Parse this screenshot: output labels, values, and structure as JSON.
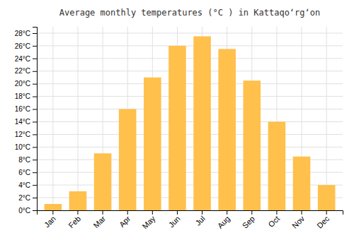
{
  "chart_data": {
    "type": "bar",
    "title": "Average monthly temperatures (°C ) in Kattaqoʻrgʻon",
    "categories": [
      "Jan",
      "Feb",
      "Mar",
      "Apr",
      "May",
      "Jun",
      "Jul",
      "Aug",
      "Sep",
      "Oct",
      "Nov",
      "Dec"
    ],
    "values": [
      1,
      3,
      9,
      16,
      21,
      26,
      27.5,
      25.5,
      20.5,
      14,
      8.5,
      4
    ],
    "color": "#FFC04C",
    "ylim": [
      0,
      29
    ],
    "yticks": [
      {
        "value": 0,
        "label": "0°C"
      },
      {
        "value": 2,
        "label": "2°C"
      },
      {
        "value": 4,
        "label": "4°C"
      },
      {
        "value": 6,
        "label": "6°C"
      },
      {
        "value": 8,
        "label": "8°C"
      },
      {
        "value": 10,
        "label": "10°C"
      },
      {
        "value": 12,
        "label": "12°C"
      },
      {
        "value": 14,
        "label": "14°C"
      },
      {
        "value": 16,
        "label": "16°C"
      },
      {
        "value": 18,
        "label": "18°C"
      },
      {
        "value": 20,
        "label": "20°C"
      },
      {
        "value": 22,
        "label": "22°C"
      },
      {
        "value": 24,
        "label": "24°C"
      },
      {
        "value": 26,
        "label": "26°C"
      },
      {
        "value": 28,
        "label": "28°C"
      }
    ],
    "grid": true
  }
}
